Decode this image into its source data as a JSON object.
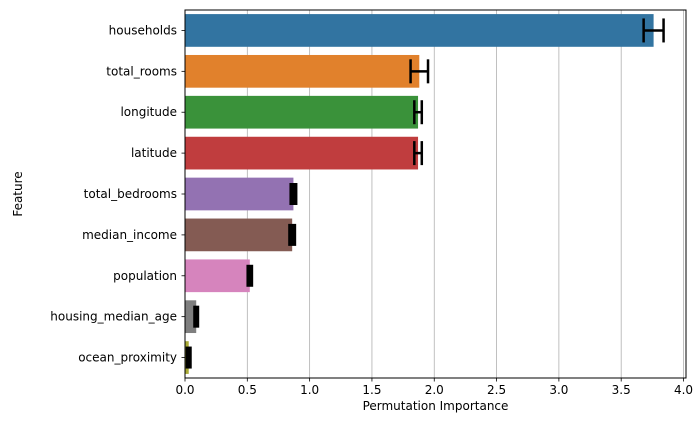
{
  "chart_data": {
    "type": "bar",
    "orientation": "horizontal",
    "xlabel": "Permutation Importance",
    "ylabel": "Feature",
    "xlim": [
      0,
      4.02
    ],
    "xticks": [
      "0.0",
      "0.5",
      "1.0",
      "1.5",
      "2.0",
      "2.5",
      "3.0",
      "3.5",
      "4.0"
    ],
    "grid": "vertical",
    "categories": [
      "households",
      "total_rooms",
      "longitude",
      "latitude",
      "total_bedrooms",
      "median_income",
      "population",
      "housing_median_age",
      "ocean_proximity"
    ],
    "values": [
      3.76,
      1.88,
      1.87,
      1.87,
      0.87,
      0.86,
      0.52,
      0.09,
      0.03
    ],
    "errors": [
      0.08,
      0.07,
      0.03,
      0.03,
      0.02,
      0.02,
      0.015,
      0.01,
      0.01
    ],
    "colors": [
      "#3274a1",
      "#e1812c",
      "#3a923a",
      "#c03d3e",
      "#9372b2",
      "#845b53",
      "#d684bd",
      "#7f7f7f",
      "#a9aa35"
    ]
  }
}
